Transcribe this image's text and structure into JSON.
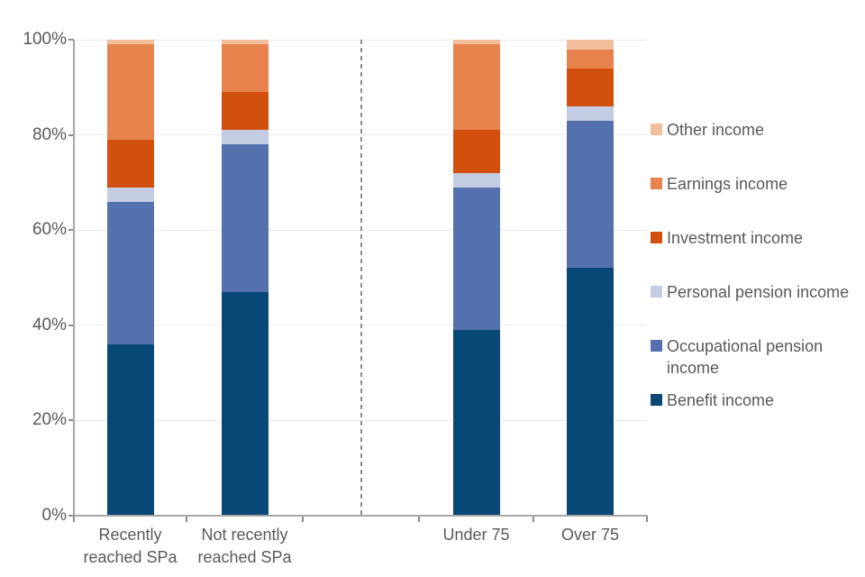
{
  "chart_data": {
    "type": "bar",
    "stacked": true,
    "units": "percent",
    "categories": [
      "Recently reached SPa",
      "Not recently reached SPa",
      "Under 75",
      "Over 75"
    ],
    "category_label_lines": [
      [
        "Recently",
        "reached SPa"
      ],
      [
        "Not recently",
        "reached SPa"
      ],
      [
        "Under 75"
      ],
      [
        "Over 75"
      ]
    ],
    "series": [
      {
        "name": "Benefit income",
        "color": "#084876",
        "values": [
          36,
          47,
          39,
          52
        ]
      },
      {
        "name": "Occupational pension income",
        "color": "#5471AD",
        "values": [
          30,
          31,
          30,
          31
        ]
      },
      {
        "name": "Personal pension income",
        "color": "#C3CCE2",
        "values": [
          3,
          3,
          3,
          3
        ]
      },
      {
        "name": "Investment income",
        "color": "#D2500E",
        "values": [
          10,
          8,
          9,
          8
        ]
      },
      {
        "name": "Earnings income",
        "color": "#E8834E",
        "values": [
          20,
          10,
          18,
          4
        ]
      },
      {
        "name": "Other income",
        "color": "#F2BE9B",
        "values": [
          1,
          1,
          1,
          2
        ]
      }
    ],
    "ylim": [
      0,
      100
    ],
    "ytick_labels": [
      "0%",
      "20%",
      "40%",
      "60%",
      "80%",
      "100%"
    ],
    "grid": "horizontal",
    "legend": {
      "position": "right",
      "order_top_to_bottom": [
        "Other income",
        "Earnings income",
        "Investment income",
        "Personal pension income",
        "Occupational pension income",
        "Benefit income"
      ]
    },
    "group_divider": {
      "style": "dashed-vertical-line",
      "between_categories": [
        "Not recently reached SPa",
        "Under 75"
      ]
    },
    "style_colors": {
      "grid": "#EAEAEA",
      "axis": "#A6A6A6",
      "tick": "#8C8C8C",
      "label_text": "#595959",
      "divider": "#8C8C8C"
    }
  }
}
